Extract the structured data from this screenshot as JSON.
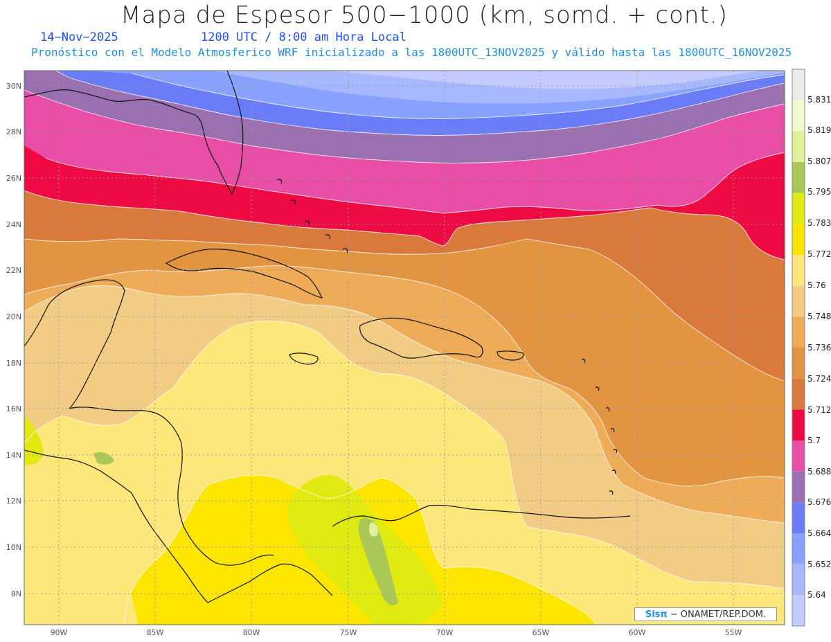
{
  "title": "Mapa de Espesor 500−1000 (km, somd. + cont.)",
  "subtitle": {
    "date": "14−Nov−2025",
    "time": "1200 UTC / 8:00 am Hora Local",
    "model_info": "Pronóstico con el Modelo Atmosferico WRF inicializado a las 1800UTC_13NOV2025 y válido hasta las  1800UTC_16NOV2025"
  },
  "map": {
    "lat_labels": [
      "30N",
      "28N",
      "26N",
      "24N",
      "22N",
      "20N",
      "18N",
      "16N",
      "14N",
      "12N",
      "10N",
      "8N"
    ],
    "lon_labels": [
      "90W",
      "85W",
      "80W",
      "75W",
      "70W",
      "65W",
      "60W",
      "55W"
    ]
  },
  "colorbar": {
    "labels": [
      "5.64",
      "5.652",
      "5.664",
      "5.676",
      "5.688",
      "5.7",
      "5.712",
      "5.724",
      "5.736",
      "5.748",
      "5.76",
      "5.772",
      "5.783",
      "5.795",
      "5.807",
      "5.819",
      "5.831"
    ],
    "colors": [
      "#c4ccff",
      "#a7b8ff",
      "#8aa2ff",
      "#6a7cf7",
      "#9a70b0",
      "#e84ea6",
      "#ee0a42",
      "#d97a3c",
      "#e39440",
      "#eeac58",
      "#f2cc84",
      "#fde67a",
      "#fce600",
      "#e0ea10",
      "#aac858",
      "#e2f09c",
      "#f4f8cc",
      "#ececec"
    ]
  },
  "credit": {
    "logo": "Sisπ",
    "org": "− ONAMET/REP.DOM."
  }
}
